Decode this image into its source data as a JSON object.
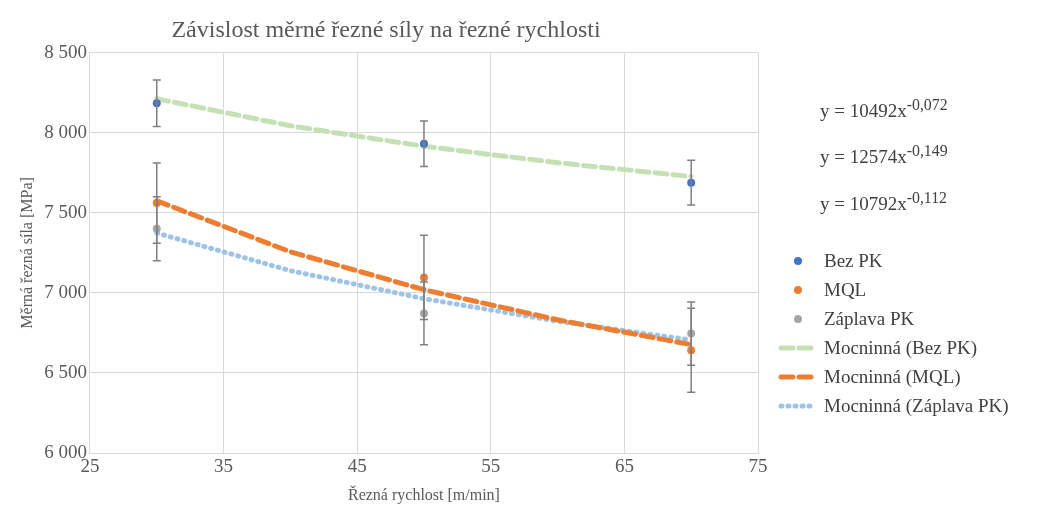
{
  "chart_data": {
    "type": "scatter",
    "title": "Závislost měrné řezné síly na řezné rychlosti",
    "xlabel": "Řezná rychlost [m/min]",
    "ylabel": "Měrná řezná síla [MPa]",
    "xlim": [
      25,
      75
    ],
    "xticks": [
      25,
      35,
      45,
      55,
      65,
      75
    ],
    "ylim": [
      6000,
      8500
    ],
    "yticks": [
      {
        "value": 6000,
        "label": "6 000"
      },
      {
        "value": 6500,
        "label": "6 500"
      },
      {
        "value": 7000,
        "label": "7 000"
      },
      {
        "value": 7500,
        "label": "7 500"
      },
      {
        "value": 8000,
        "label": "8 000"
      },
      {
        "value": 8500,
        "label": "8 500"
      }
    ],
    "grid": true,
    "legend": "right",
    "annotations": [
      "y = 10492x$^{-0,072}$",
      "y = 12574x$^{-0,149}$",
      "y = 10792x$^{-0,112}$"
    ],
    "series": [
      {
        "name": "Bez PK",
        "type": "scatter",
        "marker": "circle",
        "color": "#4472c4",
        "x": [
          30,
          50,
          70
        ],
        "values": [
          8185,
          7932,
          7689
        ],
        "errors": [
          145,
          142,
          140
        ]
      },
      {
        "name": "MQL",
        "type": "scatter",
        "marker": "circle",
        "color": "#ed7d31",
        "x": [
          30,
          50,
          70
        ],
        "values": [
          7561,
          7097,
          6642
        ],
        "errors": [
          250,
          263,
          262
        ]
      },
      {
        "name": "Záplava PK",
        "type": "scatter",
        "marker": "circle",
        "color": "#a5a5a5",
        "x": [
          30,
          50,
          70
        ],
        "values": [
          7401,
          6872,
          6746
        ],
        "errors": [
          200,
          196,
          198
        ]
      },
      {
        "name": "Mocninná (Bez PK)",
        "type": "line",
        "marker": "none",
        "line_style": "dashed",
        "color": "#c5e0b4",
        "x": [
          30,
          40,
          50,
          60,
          70
        ],
        "values": [
          8213,
          8044,
          7916,
          7813,
          7727
        ]
      },
      {
        "name": "Mocninná (MQL)",
        "type": "line",
        "marker": "none",
        "line_style": "dashed",
        "color": "#ed7d31",
        "x": [
          30,
          40,
          50,
          60,
          70
        ],
        "values": [
          7575,
          7257,
          7020,
          6832,
          6677
        ]
      },
      {
        "name": "Mocninná (Záplava PK)",
        "type": "line",
        "marker": "none",
        "line_style": "dotted",
        "color": "#9dc3e6",
        "x": [
          30,
          40,
          50,
          60,
          70
        ],
        "values": [
          7374,
          7139,
          6964,
          6823,
          6706
        ]
      }
    ]
  }
}
